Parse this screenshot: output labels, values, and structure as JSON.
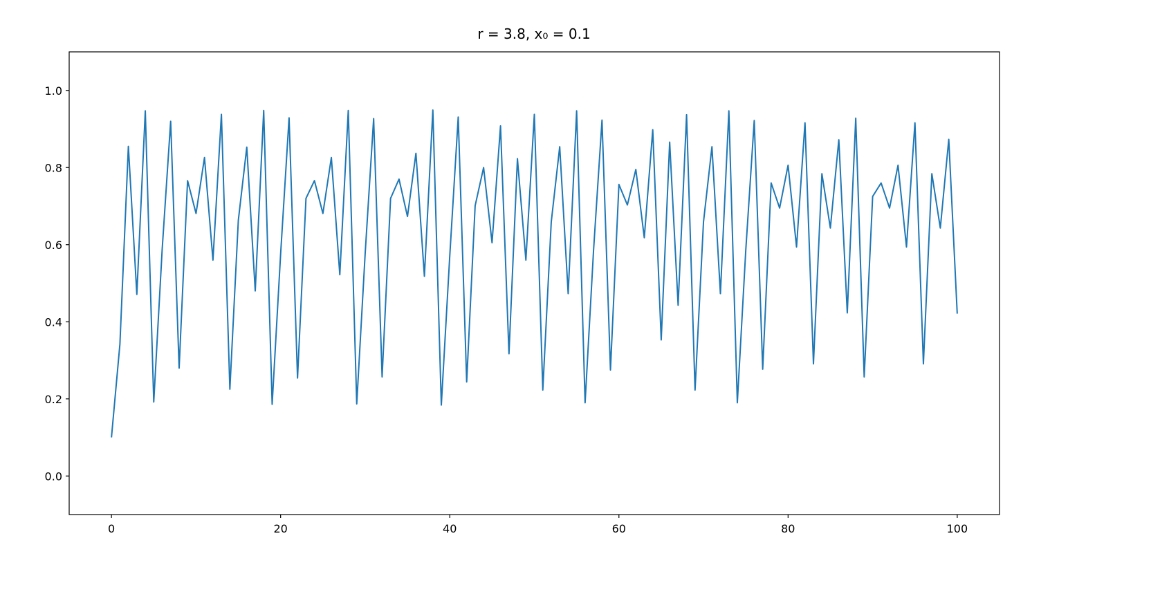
{
  "chart_data": {
    "type": "line",
    "title": "r = 3.8, x₀ = 0.1",
    "x": [
      0,
      1,
      2,
      3,
      4,
      5,
      6,
      7,
      8,
      9,
      10,
      11,
      12,
      13,
      14,
      15,
      16,
      17,
      18,
      19,
      20,
      21,
      22,
      23,
      24,
      25,
      26,
      27,
      28,
      29,
      30,
      31,
      32,
      33,
      34,
      35,
      36,
      37,
      38,
      39,
      40,
      41,
      42,
      43,
      44,
      45,
      46,
      47,
      48,
      49,
      50,
      51,
      52,
      53,
      54,
      55,
      56,
      57,
      58,
      59,
      60,
      61,
      62,
      63,
      64,
      65,
      66,
      67,
      68,
      69,
      70,
      71,
      72,
      73,
      74,
      75,
      76,
      77,
      78,
      79,
      80,
      81,
      82,
      83,
      84,
      85,
      86,
      87,
      88,
      89,
      90,
      91,
      92,
      93,
      94,
      95,
      96,
      97,
      98,
      99,
      100
    ],
    "series": [
      {
        "color": "#1f77b4",
        "values": [
          0.1,
          0.342,
          0.855,
          0.471,
          0.947,
          0.192,
          0.589,
          0.92,
          0.28,
          0.766,
          0.681,
          0.826,
          0.56,
          0.938,
          0.225,
          0.663,
          0.853,
          0.48,
          0.948,
          0.186,
          0.575,
          0.929,
          0.254,
          0.72,
          0.766,
          0.681,
          0.826,
          0.522,
          0.948,
          0.187,
          0.578,
          0.927,
          0.257,
          0.72,
          0.77,
          0.673,
          0.837,
          0.518,
          0.949,
          0.184,
          0.571,
          0.931,
          0.244,
          0.701,
          0.8,
          0.605,
          0.908,
          0.317,
          0.823,
          0.56,
          0.938,
          0.223,
          0.659,
          0.854,
          0.473,
          0.947,
          0.19,
          0.585,
          0.923,
          0.275,
          0.756,
          0.703,
          0.795,
          0.618,
          0.898,
          0.353,
          0.866,
          0.443,
          0.937,
          0.223,
          0.659,
          0.854,
          0.473,
          0.947,
          0.19,
          0.586,
          0.922,
          0.277,
          0.76,
          0.695,
          0.806,
          0.594,
          0.916,
          0.291,
          0.784,
          0.643,
          0.872,
          0.423,
          0.928,
          0.257,
          0.725,
          0.76,
          0.695,
          0.806,
          0.594,
          0.916,
          0.291,
          0.784,
          0.643,
          0.873,
          0.421
        ]
      }
    ],
    "xlim": [
      -5,
      105
    ],
    "xticks": [
      0,
      20,
      40,
      60,
      80,
      100
    ],
    "ylim": [
      -0.1,
      1.1
    ],
    "yticks": [
      {
        "value": 0,
        "label": "0.0"
      },
      0.2,
      0.4,
      0.6,
      0.8,
      {
        "value": 1,
        "label": "1.0"
      }
    ],
    "grid": false
  }
}
